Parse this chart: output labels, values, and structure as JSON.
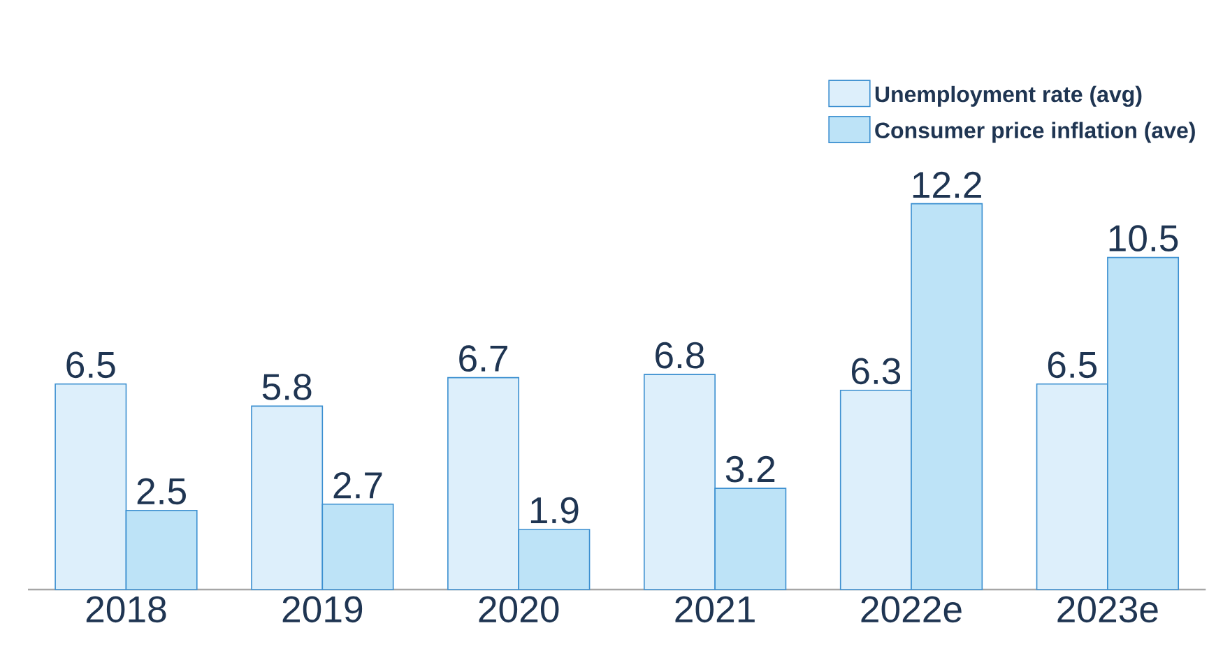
{
  "chart_data": {
    "type": "bar",
    "categories": [
      "2018",
      "2019",
      "2020",
      "2021",
      "2022e",
      "2023e"
    ],
    "series": [
      {
        "name": "Unemployment rate (avg)",
        "color": "#ddeffb",
        "values": [
          6.5,
          5.8,
          6.7,
          6.8,
          6.3,
          6.5
        ]
      },
      {
        "name": "Consumer price inflation (ave)",
        "color": "#bde3f7",
        "values": [
          2.5,
          2.7,
          1.9,
          3.2,
          12.2,
          10.5
        ]
      }
    ],
    "data_labels": true,
    "legend": "top right"
  }
}
